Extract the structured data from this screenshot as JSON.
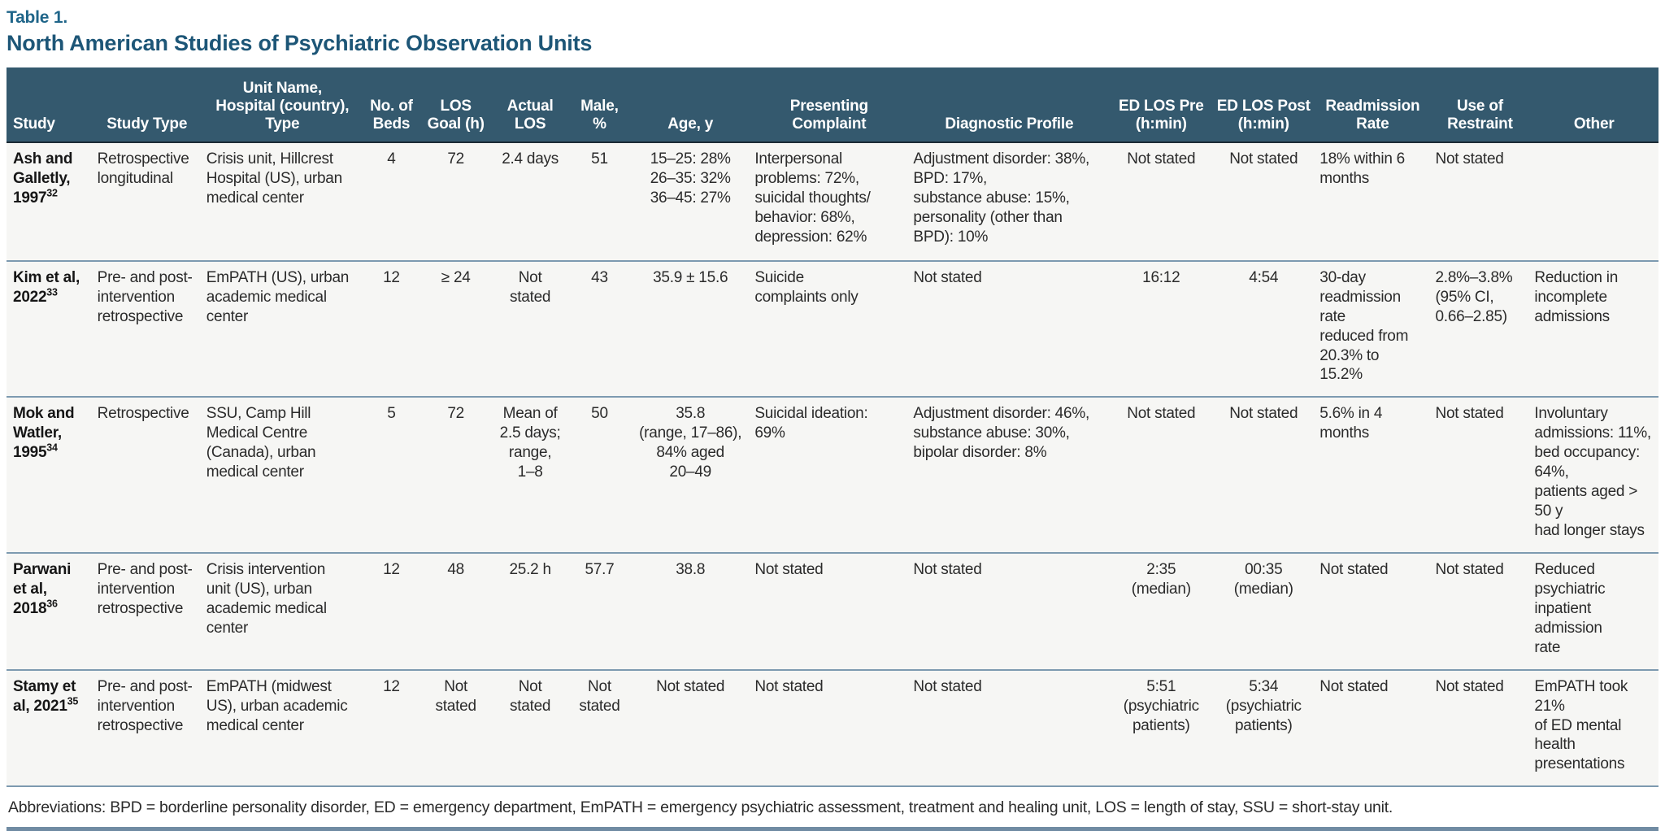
{
  "page": {
    "label": "Table 1.",
    "title": "North American Studies of Psychiatric Observation Units",
    "footnote": "Abbreviations: BPD = borderline personality disorder, ED = emergency department, EmPATH = emergency psychiatric assessment, treatment and healing unit, LOS = length of stay, SSU = short-stay unit."
  },
  "colors": {
    "header_bg": "#34596e",
    "title_blue": "#1d5677",
    "label_blue": "#1f6589",
    "row_rule": "#7d9ab0",
    "bottom_rule": "#708ba3",
    "row_bg": "#f6f6f4"
  },
  "table": {
    "columns": [
      {
        "key": "study",
        "label": "Study"
      },
      {
        "key": "type",
        "label": "Study Type"
      },
      {
        "key": "unit",
        "label": "Unit Name,\nHospital (country),\nType"
      },
      {
        "key": "beds",
        "label": "No. of\nBeds"
      },
      {
        "key": "goal",
        "label": "LOS\nGoal (h)"
      },
      {
        "key": "actual",
        "label": "Actual\nLOS"
      },
      {
        "key": "male",
        "label": "Male,\n%"
      },
      {
        "key": "age",
        "label": "Age, y"
      },
      {
        "key": "presenting",
        "label": "Presenting\nComplaint"
      },
      {
        "key": "diagnostic",
        "label": "Diagnostic Profile"
      },
      {
        "key": "pre",
        "label": "ED LOS Pre\n(h:min)"
      },
      {
        "key": "post",
        "label": "ED LOS Post\n(h:min)"
      },
      {
        "key": "readmission",
        "label": "Readmission\nRate"
      },
      {
        "key": "restraint",
        "label": "Use of\nRestraint"
      },
      {
        "key": "other",
        "label": "Other"
      }
    ],
    "rows": [
      {
        "ref": "32",
        "cells": {
          "study": "Ash and\nGalletly,\n1997",
          "type": "Retrospective\nlongitudinal",
          "unit": "Crisis unit, Hillcrest\nHospital (US), urban\nmedical center",
          "beds": "4",
          "goal": "72",
          "actual": "2.4 days",
          "male": "51",
          "age": "15–25: 28%\n26–35: 32%\n36–45: 27%",
          "presenting": "Interpersonal\nproblems: 72%,\nsuicidal thoughts/\nbehavior: 68%,\ndepression: 62%",
          "diagnostic": "Adjustment disorder: 38%,\nBPD: 17%,\nsubstance abuse: 15%,\npersonality (other than\nBPD): 10%",
          "pre": "Not stated",
          "post": "Not stated",
          "readmission": "18% within 6\nmonths",
          "restraint": "Not stated",
          "other": ""
        }
      },
      {
        "ref": "33",
        "cells": {
          "study": "Kim et al,\n2022",
          "type": "Pre- and post-\nintervention\nretrospective",
          "unit": "EmPATH (US), urban\nacademic medical\ncenter",
          "beds": "12",
          "goal": "≥ 24",
          "actual": "Not\nstated",
          "male": "43",
          "age": "35.9 ± 15.6",
          "presenting": "Suicide\ncomplaints only",
          "diagnostic": "Not stated",
          "pre": "16:12",
          "post": "4:54",
          "readmission": "30-day\nreadmission rate\nreduced from\n20.3% to 15.2%",
          "restraint": "2.8%–3.8%\n(95% CI,\n0.66–2.85)",
          "other": "Reduction in\nincomplete\nadmissions"
        }
      },
      {
        "ref": "34",
        "cells": {
          "study": "Mok and\nWatler,\n1995",
          "type": "Retrospective",
          "unit": "SSU, Camp Hill\nMedical Centre\n(Canada), urban\nmedical center",
          "beds": "5",
          "goal": "72",
          "actual": "Mean of\n2.5 days;\nrange,\n1–8",
          "male": "50",
          "age": "35.8\n(range, 17–86),\n84% aged\n20–49",
          "presenting": "Suicidal ideation:\n69%",
          "diagnostic": "Adjustment disorder: 46%,\nsubstance abuse: 30%,\nbipolar disorder: 8%",
          "pre": "Not stated",
          "post": "Not stated",
          "readmission": "5.6% in 4\nmonths",
          "restraint": "Not stated",
          "other": "Involuntary\nadmissions: 11%,\nbed occupancy: 64%,\npatients aged > 50 y\nhad longer stays"
        }
      },
      {
        "ref": "36",
        "cells": {
          "study": "Parwani\net al,\n2018",
          "type": "Pre- and post-\nintervention\nretrospective",
          "unit": "Crisis intervention\nunit (US), urban\nacademic medical\ncenter",
          "beds": "12",
          "goal": "48",
          "actual": "25.2 h",
          "male": "57.7",
          "age": "38.8",
          "presenting": "Not stated",
          "diagnostic": "Not stated",
          "pre": "2:35\n(median)",
          "post": "00:35\n(median)",
          "readmission": "Not stated",
          "restraint": "Not stated",
          "other": "Reduced psychiatric\ninpatient admission\nrate"
        }
      },
      {
        "ref": "35",
        "cells": {
          "study": "Stamy et\nal, 2021",
          "type": "Pre- and post-\nintervention\nretrospective",
          "unit": "EmPATH (midwest\nUS), urban academic\nmedical center",
          "beds": "12",
          "goal": "Not\nstated",
          "actual": "Not\nstated",
          "male": "Not\nstated",
          "age": "Not stated",
          "presenting": "Not stated",
          "diagnostic": "Not stated",
          "pre": "5:51\n(psychiatric\npatients)",
          "post": "5:34\n(psychiatric\npatients)",
          "readmission": "Not stated",
          "restraint": "Not stated",
          "other": "EmPATH took 21%\nof ED mental health\npresentations"
        }
      }
    ]
  }
}
